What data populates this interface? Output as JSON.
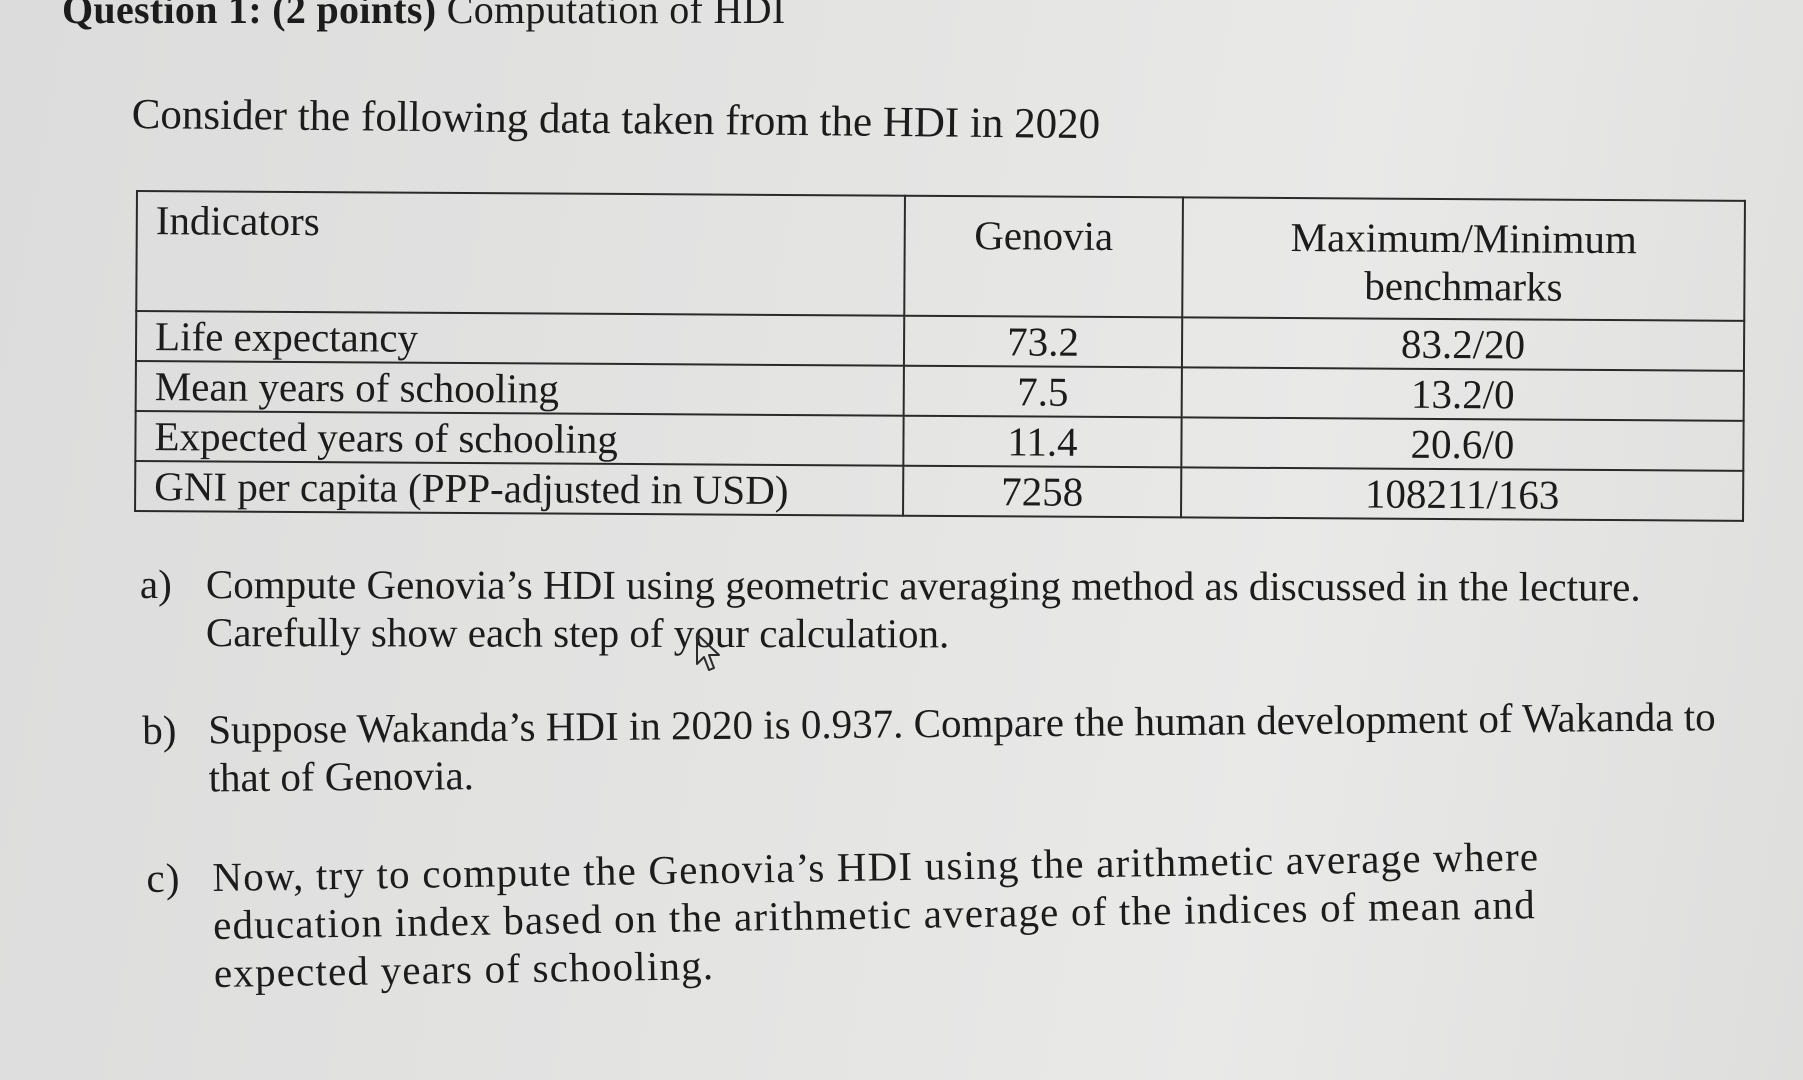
{
  "heading": {
    "prefix": "Question 1: (2 points)",
    "title": "Computation of HDI"
  },
  "intro": "Consider the following data taken from the HDI in 2020",
  "table": {
    "headers": [
      "Indicators",
      "Genovia",
      "Maximum/Minimum benchmarks"
    ],
    "rows": [
      {
        "indicator": "Life expectancy",
        "value": "73.2",
        "benchmark": "83.2/20"
      },
      {
        "indicator": "Mean years of schooling",
        "value": "7.5",
        "benchmark": "13.2/0"
      },
      {
        "indicator": "Expected years of schooling",
        "value": "11.4",
        "benchmark": "20.6/0"
      },
      {
        "indicator": "GNI per capita (PPP-adjusted in USD)",
        "value": "7258",
        "benchmark": "108211/163"
      }
    ]
  },
  "questions": [
    {
      "marker": "a)",
      "text": "Compute Genovia’s HDI using geometric averaging method as discussed in the lecture. Carefully show each step of your calculation."
    },
    {
      "marker": "b)",
      "text": "Suppose Wakanda’s HDI in 2020 is 0.937. Compare the human development of Wakanda to that of Genovia."
    },
    {
      "marker": "c)",
      "text": "Now, try to compute the Genovia’s HDI using the arithmetic average where education index based on the arithmetic average of the indices of mean and expected years of schooling."
    }
  ],
  "icons": {
    "cursor": "mouse-pointer-icon"
  }
}
